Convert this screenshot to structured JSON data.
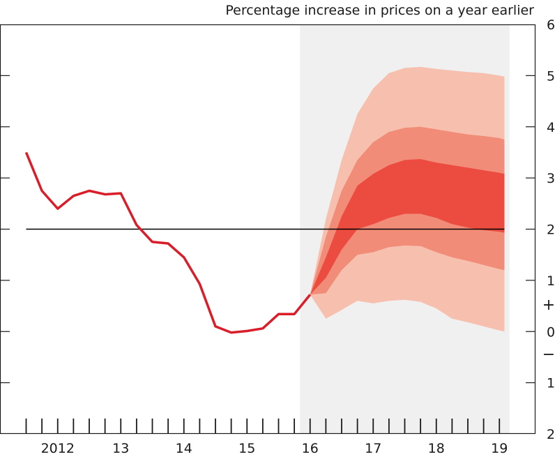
{
  "chart_data": {
    "type": "line",
    "title": "Percentage increase in prices on a year earlier",
    "xlabel": "",
    "ylabel": "",
    "xlim": [
      2011.58,
      2019.5
    ],
    "ylim": [
      -2,
      6
    ],
    "x_ticks": [
      {
        "year": 2012.0,
        "label": "2012"
      },
      {
        "year": 2013.0,
        "label": "13"
      },
      {
        "year": 2014.0,
        "label": "14"
      },
      {
        "year": 2015.0,
        "label": "15"
      },
      {
        "year": 2016.0,
        "label": "16"
      },
      {
        "year": 2017.0,
        "label": "17"
      },
      {
        "year": 2018.0,
        "label": "18"
      },
      {
        "year": 2019.0,
        "label": "19"
      }
    ],
    "y_ticks": [
      {
        "value": 6,
        "label": "6"
      },
      {
        "value": 5,
        "label": "5"
      },
      {
        "value": 4,
        "label": "4"
      },
      {
        "value": 3,
        "label": "3"
      },
      {
        "value": 2,
        "label": "2"
      },
      {
        "value": 1,
        "label": "1"
      },
      {
        "value": 0,
        "label": "0"
      },
      {
        "value": -1,
        "label": "1"
      },
      {
        "value": -2,
        "label": "2"
      }
    ],
    "sign_markers": {
      "plus": "+",
      "minus": "−"
    },
    "target_line": 2.0,
    "forecast_start": 2016.0,
    "forecast_end": 2019.25,
    "colors": {
      "line": "#d91e2a",
      "shade": "#f0f0f0",
      "band_outer": "#f7c0ae",
      "band_middle": "#f08c78",
      "band_inner": "#ec4b3f",
      "target": "#000000"
    },
    "series": [
      {
        "points": [
          {
            "x": 2011.67,
            "y": 3.5
          },
          {
            "x": 2011.92,
            "y": 2.75
          },
          {
            "x": 2012.17,
            "y": 2.4
          },
          {
            "x": 2012.42,
            "y": 2.65
          },
          {
            "x": 2012.67,
            "y": 2.75
          },
          {
            "x": 2012.92,
            "y": 2.68
          },
          {
            "x": 2013.17,
            "y": 2.7
          },
          {
            "x": 2013.42,
            "y": 2.08
          },
          {
            "x": 2013.67,
            "y": 1.75
          },
          {
            "x": 2013.92,
            "y": 1.72
          },
          {
            "x": 2014.17,
            "y": 1.45
          },
          {
            "x": 2014.42,
            "y": 0.93
          },
          {
            "x": 2014.67,
            "y": 0.1
          },
          {
            "x": 2014.92,
            "y": -0.02
          },
          {
            "x": 2015.17,
            "y": 0.01
          },
          {
            "x": 2015.42,
            "y": 0.06
          },
          {
            "x": 2015.67,
            "y": 0.34
          },
          {
            "x": 2015.92,
            "y": 0.34
          },
          {
            "x": 2016.17,
            "y": 0.72
          }
        ]
      }
    ],
    "fan_bands": {
      "x": [
        2016.17,
        2016.42,
        2016.67,
        2016.92,
        2017.17,
        2017.42,
        2017.67,
        2017.92,
        2018.17,
        2018.42,
        2018.67,
        2018.92,
        2019.17,
        2019.25
      ],
      "outer_low": [
        0.72,
        0.25,
        0.42,
        0.6,
        0.55,
        0.6,
        0.62,
        0.58,
        0.45,
        0.25,
        0.18,
        0.1,
        0.02,
        0.0
      ],
      "outer_high": [
        0.72,
        2.2,
        3.35,
        4.25,
        4.75,
        5.05,
        5.15,
        5.17,
        5.13,
        5.1,
        5.07,
        5.05,
        5.0,
        4.98
      ],
      "middle_low": [
        0.72,
        0.75,
        1.2,
        1.5,
        1.55,
        1.65,
        1.68,
        1.67,
        1.55,
        1.45,
        1.38,
        1.3,
        1.22,
        1.2
      ],
      "middle_high": [
        0.72,
        1.85,
        2.75,
        3.35,
        3.7,
        3.9,
        3.98,
        4.0,
        3.95,
        3.9,
        3.85,
        3.82,
        3.78,
        3.75
      ],
      "inner_low": [
        0.72,
        1.05,
        1.6,
        2.0,
        2.1,
        2.22,
        2.3,
        2.3,
        2.22,
        2.1,
        2.03,
        1.98,
        1.95,
        1.93
      ],
      "inner_high": [
        0.72,
        1.45,
        2.25,
        2.85,
        3.08,
        3.25,
        3.35,
        3.37,
        3.3,
        3.25,
        3.2,
        3.15,
        3.1,
        3.08
      ]
    }
  }
}
